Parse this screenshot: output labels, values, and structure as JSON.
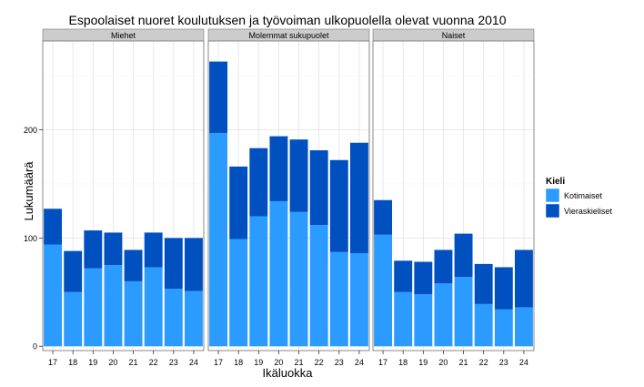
{
  "chart_data": {
    "type": "bar",
    "stacked": true,
    "title": "Espoolaiset nuoret koulutuksen ja työvoiman ulkopuolella olevat vuonna 2010",
    "xlabel": "Ikäluokka",
    "ylabel": "Lukumäärä",
    "ylim": [
      0,
      275
    ],
    "yticks": [
      0,
      100,
      200
    ],
    "categories": [
      "17",
      "18",
      "19",
      "20",
      "21",
      "22",
      "23",
      "24"
    ],
    "legend": {
      "title": "Kieli",
      "placement": "right",
      "entries": [
        "Kotimaiset",
        "Vieraskieliset"
      ]
    },
    "colors": {
      "Kotimaiset": "#2b9bff",
      "Vieraskieliset": "#0050c0"
    },
    "panels": [
      {
        "label": "Miehet",
        "series": [
          {
            "name": "Kotimaiset",
            "values": [
              94,
              50,
              72,
              75,
              60,
              73,
              53,
              51
            ]
          },
          {
            "name": "Vieraskieliset",
            "values": [
              33,
              38,
              35,
              30,
              29,
              32,
              47,
              49
            ]
          }
        ]
      },
      {
        "label": "Molemmat sukupuolet",
        "series": [
          {
            "name": "Kotimaiset",
            "values": [
              197,
              99,
              120,
              134,
              124,
              112,
              87,
              86
            ]
          },
          {
            "name": "Vieraskieliset",
            "values": [
              66,
              67,
              63,
              60,
              67,
              69,
              85,
              102
            ]
          }
        ]
      },
      {
        "label": "Naiset",
        "series": [
          {
            "name": "Kotimaiset",
            "values": [
              103,
              50,
              48,
              58,
              64,
              39,
              34,
              36
            ]
          },
          {
            "name": "Vieraskieliset",
            "values": [
              32,
              29,
              30,
              31,
              40,
              37,
              39,
              53
            ]
          }
        ]
      }
    ]
  }
}
